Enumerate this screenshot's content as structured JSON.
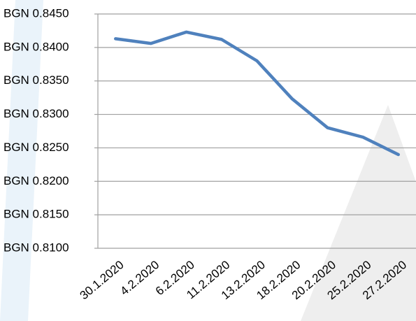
{
  "chart_data": {
    "type": "line",
    "categories": [
      "30.1.2020",
      "4.2.2020",
      "6.2.2020",
      "11.2.2020",
      "13.2.2020",
      "18.2.2020",
      "20.2.2020",
      "25.2.2020",
      "27.2.2020"
    ],
    "series": [
      {
        "name": null,
        "color": "#4f81bd",
        "values": [
          0.8413,
          0.8406,
          0.8423,
          0.8412,
          0.838,
          0.8323,
          0.828,
          0.8266,
          0.824
        ]
      }
    ],
    "ylim": [
      0.81,
      0.845
    ],
    "yticks": [
      {
        "value": 0.81,
        "label": "BGN 0.8100"
      },
      {
        "value": 0.815,
        "label": "BGN 0.8150"
      },
      {
        "value": 0.82,
        "label": "BGN 0.8200"
      },
      {
        "value": 0.825,
        "label": "BGN 0.8250"
      },
      {
        "value": 0.83,
        "label": "BGN 0.8300"
      },
      {
        "value": 0.835,
        "label": "BGN 0.8350"
      },
      {
        "value": 0.84,
        "label": "BGN 0.8400"
      },
      {
        "value": 0.845,
        "label": "BGN 0.8450"
      }
    ],
    "grid": true
  }
}
